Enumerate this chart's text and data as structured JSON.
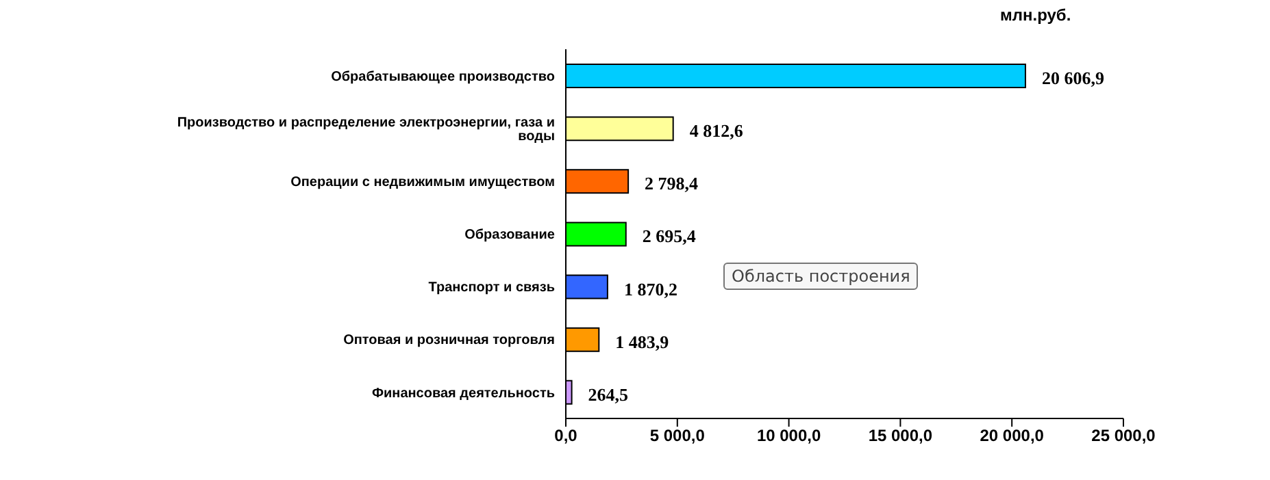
{
  "chart_data": {
    "type": "bar",
    "orientation": "horizontal",
    "title": "млн.руб.",
    "categories": [
      "Обрабатывающее производство",
      "Производство  и распределение электроэнергии, газа и воды",
      "Операции с недвижимым  имуществом",
      "Образование",
      "Транспорт  и связь",
      "Оптовая и розничная торговля",
      "Финансовая деятельность"
    ],
    "values": [
      20606.9,
      4812.6,
      2798.4,
      2695.4,
      1870.2,
      1483.9,
      264.5
    ],
    "colors": [
      "#00ccff",
      "#ffff99",
      "#ff6600",
      "#00ff00",
      "#3366ff",
      "#ff9900",
      "#cc99ff"
    ],
    "value_labels": [
      "20 606,9",
      "4 812,6",
      "2 798,4",
      "2 695,4",
      "1 870,2",
      "1 483,9",
      "264,5"
    ],
    "xlim": [
      0,
      25000
    ],
    "xticks": [
      {
        "value": 0,
        "label": "0,0"
      },
      {
        "value": 5000,
        "label": "5 000,0"
      },
      {
        "value": 10000,
        "label": "10 000,0"
      },
      {
        "value": 15000,
        "label": "15 000,0"
      },
      {
        "value": 20000,
        "label": "20 000,0"
      },
      {
        "value": 25000,
        "label": "25 000,0"
      }
    ],
    "grid": false,
    "legend": false,
    "annotations": [
      "Область построения"
    ]
  }
}
